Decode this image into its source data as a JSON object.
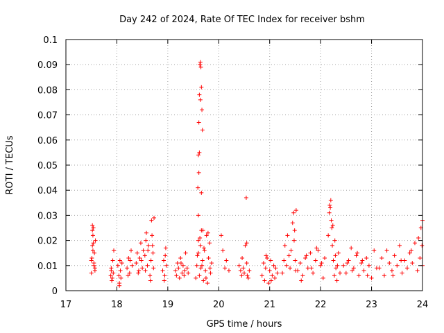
{
  "chart_data": {
    "type": "scatter",
    "title": "Day 242 of 2024, Rate Of TEC Index for receiver bshm",
    "xlabel": "GPS time / hours",
    "ylabel": "ROTI / TECUs",
    "xlim": [
      17,
      24
    ],
    "ylim": [
      0,
      0.1
    ],
    "x_ticks": [
      "17",
      "18",
      "19",
      "20",
      "21",
      "22",
      "23",
      "24"
    ],
    "y_ticks": [
      "0",
      "0.01",
      "0.02",
      "0.03",
      "0.04",
      "0.05",
      "0.06",
      "0.07",
      "0.08",
      "0.09",
      "0.1"
    ],
    "grid": true,
    "marker": "+",
    "color": "#ff0000",
    "series": [
      {
        "x": [
          17.5,
          17.52,
          17.53,
          17.54,
          17.55,
          17.56,
          17.57,
          17.58,
          17.5,
          17.51,
          17.52,
          17.53,
          17.55,
          17.57,
          17.52,
          17.54,
          17.88,
          17.89,
          17.9,
          17.92,
          17.93,
          17.94,
          17.91,
          17.89,
          18.02,
          18.04,
          18.05,
          18.06,
          18.07,
          18.08,
          18.1,
          18.05,
          18.2,
          18.23,
          18.25,
          18.28,
          18.3,
          18.22,
          18.26,
          18.38,
          18.4,
          18.43,
          18.45,
          18.47,
          18.5,
          18.52,
          18.42,
          18.48,
          18.55,
          18.57,
          18.6,
          18.62,
          18.58,
          18.56,
          18.61,
          18.65,
          18.67,
          18.68,
          18.7,
          18.72,
          18.66,
          18.69,
          18.71,
          18.73,
          18.9,
          18.92,
          18.94,
          18.96,
          18.97,
          18.93,
          18.95,
          19.15,
          19.17,
          19.19,
          19.21,
          19.23,
          19.25,
          19.28,
          19.3,
          19.32,
          19.35,
          19.38,
          19.4,
          19.26,
          19.33,
          19.55,
          19.57,
          19.58,
          19.6,
          19.62,
          19.64,
          19.65,
          19.66,
          19.68,
          19.7,
          19.72,
          19.74,
          19.76,
          19.78,
          19.8,
          19.82,
          19.84,
          19.86,
          19.6,
          19.63,
          19.67,
          19.71,
          19.75,
          19.79,
          19.83,
          19.59,
          19.6,
          19.61,
          19.62,
          19.63,
          19.64,
          19.65,
          19.66,
          19.67,
          19.68,
          19.64,
          19.62,
          19.61,
          19.66,
          19.69,
          19.6,
          20.05,
          20.08,
          20.12,
          20.15,
          20.2,
          20.4,
          20.43,
          20.45,
          20.48,
          20.5,
          20.52,
          20.55,
          20.58,
          20.6,
          20.46,
          20.54,
          20.55,
          20.56,
          20.85,
          20.88,
          20.9,
          20.92,
          20.95,
          20.98,
          21.0,
          21.02,
          21.05,
          21.08,
          21.1,
          21.12,
          21.15,
          20.93,
          21.03,
          21.25,
          21.28,
          21.3,
          21.33,
          21.35,
          21.38,
          21.4,
          21.42,
          21.45,
          21.48,
          21.5,
          21.52,
          21.47,
          21.49,
          21.51,
          21.55,
          21.6,
          21.65,
          21.7,
          21.75,
          21.8,
          21.85,
          21.9,
          21.95,
          22.0,
          22.05,
          22.08,
          21.62,
          21.72,
          21.82,
          21.92,
          22.02,
          22.15,
          22.17,
          22.18,
          22.2,
          22.21,
          22.22,
          22.23,
          22.25,
          22.27,
          22.28,
          22.3,
          22.32,
          22.35,
          22.38,
          22.19,
          22.24,
          22.29,
          22.33,
          22.45,
          22.5,
          22.55,
          22.6,
          22.65,
          22.7,
          22.75,
          22.8,
          22.85,
          22.9,
          22.95,
          23.0,
          23.05,
          23.1,
          22.52,
          22.62,
          22.72,
          22.82,
          22.92,
          23.15,
          23.2,
          23.25,
          23.3,
          23.35,
          23.4,
          23.45,
          23.5,
          23.55,
          23.6,
          23.65,
          23.7,
          23.75,
          23.8,
          23.85,
          23.9,
          23.95,
          24.0,
          23.42,
          23.58,
          23.78,
          23.92,
          23.97,
          23.99,
          24.0
        ],
        "y": [
          0.012,
          0.018,
          0.022,
          0.025,
          0.01,
          0.015,
          0.008,
          0.02,
          0.007,
          0.013,
          0.024,
          0.016,
          0.011,
          0.009,
          0.026,
          0.019,
          0.006,
          0.009,
          0.004,
          0.012,
          0.007,
          0.016,
          0.005,
          0.008,
          0.01,
          0.006,
          0.003,
          0.012,
          0.008,
          0.005,
          0.011,
          0.002,
          0.009,
          0.013,
          0.007,
          0.016,
          0.01,
          0.006,
          0.012,
          0.011,
          0.015,
          0.008,
          0.013,
          0.019,
          0.009,
          0.016,
          0.007,
          0.012,
          0.014,
          0.02,
          0.01,
          0.018,
          0.023,
          0.008,
          0.016,
          0.006,
          0.012,
          0.028,
          0.018,
          0.009,
          0.004,
          0.022,
          0.015,
          0.029,
          0.008,
          0.012,
          0.006,
          0.017,
          0.01,
          0.004,
          0.014,
          0.008,
          0.006,
          0.011,
          0.009,
          0.005,
          0.013,
          0.007,
          0.01,
          0.006,
          0.015,
          0.009,
          0.007,
          0.011,
          0.008,
          0.005,
          0.01,
          0.014,
          0.02,
          0.006,
          0.018,
          0.009,
          0.024,
          0.012,
          0.004,
          0.016,
          0.008,
          0.022,
          0.003,
          0.013,
          0.019,
          0.007,
          0.011,
          0.015,
          0.021,
          0.01,
          0.017,
          0.005,
          0.023,
          0.009,
          0.041,
          0.054,
          0.067,
          0.078,
          0.09,
          0.091,
          0.089,
          0.081,
          0.072,
          0.064,
          0.076,
          0.055,
          0.047,
          0.039,
          0.024,
          0.03,
          0.022,
          0.016,
          0.009,
          0.012,
          0.008,
          0.01,
          0.008,
          0.006,
          0.009,
          0.007,
          0.018,
          0.011,
          0.005,
          0.008,
          0.013,
          0.037,
          0.019,
          0.006,
          0.006,
          0.011,
          0.004,
          0.009,
          0.013,
          0.003,
          0.008,
          0.012,
          0.006,
          0.01,
          0.005,
          0.009,
          0.007,
          0.014,
          0.004,
          0.007,
          0.012,
          0.018,
          0.01,
          0.022,
          0.014,
          0.009,
          0.016,
          0.027,
          0.02,
          0.012,
          0.032,
          0.031,
          0.024,
          0.008,
          0.008,
          0.011,
          0.006,
          0.013,
          0.009,
          0.015,
          0.007,
          0.012,
          0.016,
          0.01,
          0.005,
          0.013,
          0.004,
          0.014,
          0.009,
          0.017,
          0.011,
          0.022,
          0.031,
          0.034,
          0.036,
          0.028,
          0.025,
          0.018,
          0.012,
          0.006,
          0.02,
          0.009,
          0.004,
          0.015,
          0.007,
          0.033,
          0.026,
          0.014,
          0.01,
          0.01,
          0.007,
          0.012,
          0.017,
          0.009,
          0.014,
          0.006,
          0.011,
          0.008,
          0.013,
          0.01,
          0.005,
          0.016,
          0.009,
          0.011,
          0.008,
          0.015,
          0.012,
          0.006,
          0.009,
          0.013,
          0.006,
          0.016,
          0.011,
          0.008,
          0.014,
          0.01,
          0.018,
          0.007,
          0.012,
          0.009,
          0.015,
          0.011,
          0.019,
          0.008,
          0.013,
          0.01,
          0.006,
          0.012,
          0.016,
          0.021,
          0.025,
          0.018,
          0.028
        ]
      }
    ]
  }
}
